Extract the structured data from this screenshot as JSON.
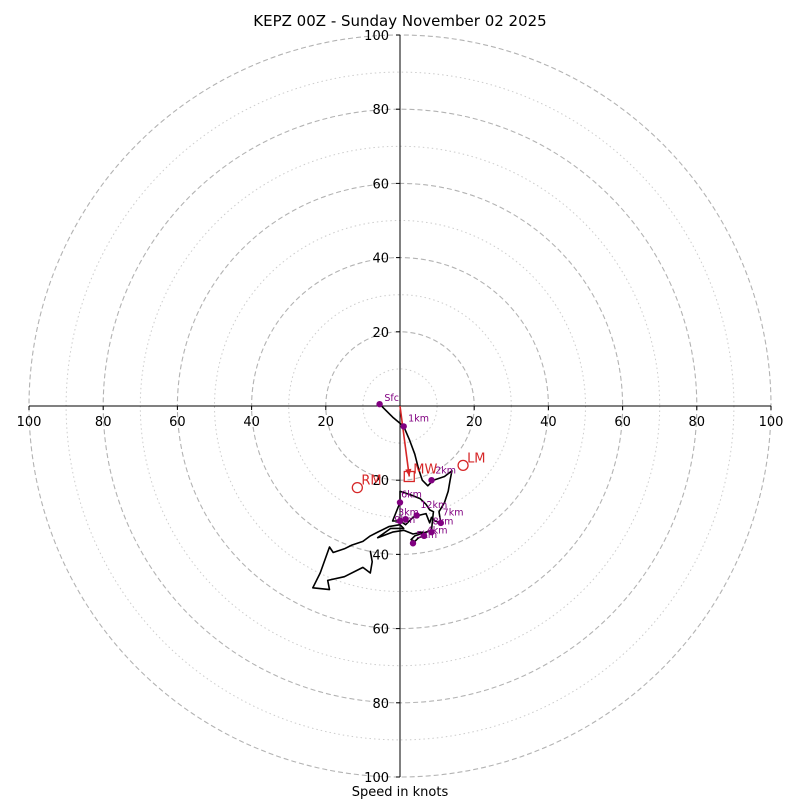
{
  "chart_data": {
    "type": "hodograph",
    "title": "KEPZ 00Z - Sunday November 02 2025",
    "xlabel": "Speed in knots",
    "units": "knots",
    "max_speed": 100,
    "rings_major": [
      20,
      40,
      60,
      80,
      100
    ],
    "rings_minor": [
      10,
      30,
      50,
      70,
      90
    ],
    "axis_ticks": [
      {
        "value": -100,
        "label": "100"
      },
      {
        "value": -80,
        "label": "80"
      },
      {
        "value": -60,
        "label": "60"
      },
      {
        "value": -40,
        "label": "40"
      },
      {
        "value": -20,
        "label": "20"
      },
      {
        "value": 20,
        "label": "20"
      },
      {
        "value": 40,
        "label": "40"
      },
      {
        "value": 60,
        "label": "60"
      },
      {
        "value": 80,
        "label": "80"
      },
      {
        "value": 100,
        "label": "100"
      }
    ],
    "hodograph_trace": [
      {
        "u": -5.5,
        "v": 0.5
      },
      {
        "u": -2,
        "v": -3
      },
      {
        "u": 1,
        "v": -5.5
      },
      {
        "u": 2.5,
        "v": -9
      },
      {
        "u": 4,
        "v": -13
      },
      {
        "u": 5,
        "v": -17
      },
      {
        "u": 6,
        "v": -20
      },
      {
        "u": 7.5,
        "v": -21.5
      },
      {
        "u": 9,
        "v": -20
      },
      {
        "u": 12,
        "v": -19
      },
      {
        "u": 14,
        "v": -17.5
      },
      {
        "u": 13.5,
        "v": -20
      },
      {
        "u": 13,
        "v": -23
      },
      {
        "u": 12,
        "v": -26
      },
      {
        "u": 10.5,
        "v": -28.5
      },
      {
        "u": 11,
        "v": -31.5
      },
      {
        "u": 9.5,
        "v": -31
      },
      {
        "u": 8.5,
        "v": -30
      },
      {
        "u": 8,
        "v": -31.5
      },
      {
        "u": 7,
        "v": -29
      },
      {
        "u": 5,
        "v": -29.5
      },
      {
        "u": 3.5,
        "v": -30
      },
      {
        "u": 1.5,
        "v": -32
      },
      {
        "u": 0,
        "v": -31
      },
      {
        "u": -2,
        "v": -31
      },
      {
        "u": 0,
        "v": -26
      },
      {
        "u": 0,
        "v": -23
      },
      {
        "u": 3,
        "v": -24
      },
      {
        "u": 5.5,
        "v": -25
      },
      {
        "u": 7,
        "v": -26.5
      },
      {
        "u": 8,
        "v": -28
      },
      {
        "u": 9,
        "v": -28.5
      },
      {
        "u": 8.5,
        "v": -33.5
      },
      {
        "u": 7,
        "v": -34
      },
      {
        "u": 4,
        "v": -35
      },
      {
        "u": 3,
        "v": -36
      },
      {
        "u": 4,
        "v": -36.5
      },
      {
        "u": 5,
        "v": -35.5
      },
      {
        "u": 6.5,
        "v": -35
      },
      {
        "u": 6,
        "v": -34
      },
      {
        "u": 3.5,
        "v": -34.5
      },
      {
        "u": 1,
        "v": -33.5
      },
      {
        "u": -2,
        "v": -34
      },
      {
        "u": -6,
        "v": -35.5
      },
      {
        "u": -2.5,
        "v": -33
      },
      {
        "u": 1,
        "v": -33
      },
      {
        "u": 0,
        "v": -32
      },
      {
        "u": -3,
        "v": -32.5
      },
      {
        "u": -6,
        "v": -34
      },
      {
        "u": -8,
        "v": -35
      },
      {
        "u": -10,
        "v": -36.5
      },
      {
        "u": -13,
        "v": -37.5
      },
      {
        "u": -15,
        "v": -38.5
      },
      {
        "u": -18,
        "v": -39.5
      },
      {
        "u": -19,
        "v": -38
      },
      {
        "u": -21.5,
        "v": -45
      },
      {
        "u": -23.5,
        "v": -49
      },
      {
        "u": -19,
        "v": -49.5
      },
      {
        "u": -19.5,
        "v": -47
      },
      {
        "u": -15,
        "v": -46
      },
      {
        "u": -10,
        "v": -43.5
      },
      {
        "u": -8,
        "v": -45
      },
      {
        "u": -7.5,
        "v": -42
      },
      {
        "u": -8,
        "v": -39
      }
    ],
    "height_markers": [
      {
        "label": "Sfc",
        "u": -5.5,
        "v": 0.5,
        "lu": -4.2,
        "lv": 1.3
      },
      {
        "label": "1km",
        "u": 1,
        "v": -5.5,
        "lu": 2.2,
        "lv": -4.2
      },
      {
        "label": "2km",
        "u": 8.5,
        "v": -20,
        "lu": 9.5,
        "lv": -18.2
      },
      {
        "label": "6km",
        "u": 0,
        "v": -26,
        "lu": 0.3,
        "lv": -24.6
      },
      {
        "label": "12km",
        "u": 4.5,
        "v": -29.5,
        "lu": 5.5,
        "lv": -27.5
      },
      {
        "label": "3km",
        "u": 1.5,
        "v": -30.5,
        "lu": -0.5,
        "lv": -29.5
      },
      {
        "label": "9km",
        "u": 0,
        "v": -31,
        "lu": -1.5,
        "lv": -31.5
      },
      {
        "label": "7km",
        "u": 11,
        "v": -31.5,
        "lu": 11.5,
        "lv": -29.5
      },
      {
        "label": "8km",
        "u": 8.5,
        "v": -34,
        "lu": 8.8,
        "lv": -32
      },
      {
        "label": "4km",
        "u": 6.5,
        "v": -35,
        "lu": 7.2,
        "lv": -34.3
      },
      {
        "label": "5km",
        "u": 3.5,
        "v": -37,
        "lu": 4.4,
        "lv": -35.6
      }
    ],
    "motion_markers": [
      {
        "label": "LM",
        "u": 17,
        "v": -16,
        "symbol": "circle"
      },
      {
        "label": "RM",
        "u": -11.5,
        "v": -22,
        "symbol": "circle"
      },
      {
        "label": "MW",
        "u": 2.5,
        "v": -19,
        "symbol": "square"
      }
    ],
    "shear_vector": {
      "from": {
        "u": 0,
        "v": 0
      },
      "to": {
        "u": 2.5,
        "v": -19
      }
    },
    "colors": {
      "trace": "#000000",
      "height_marker": "#800080",
      "motion": "#d62728",
      "ring": "#b3b3b3",
      "axis": "#000000"
    }
  }
}
